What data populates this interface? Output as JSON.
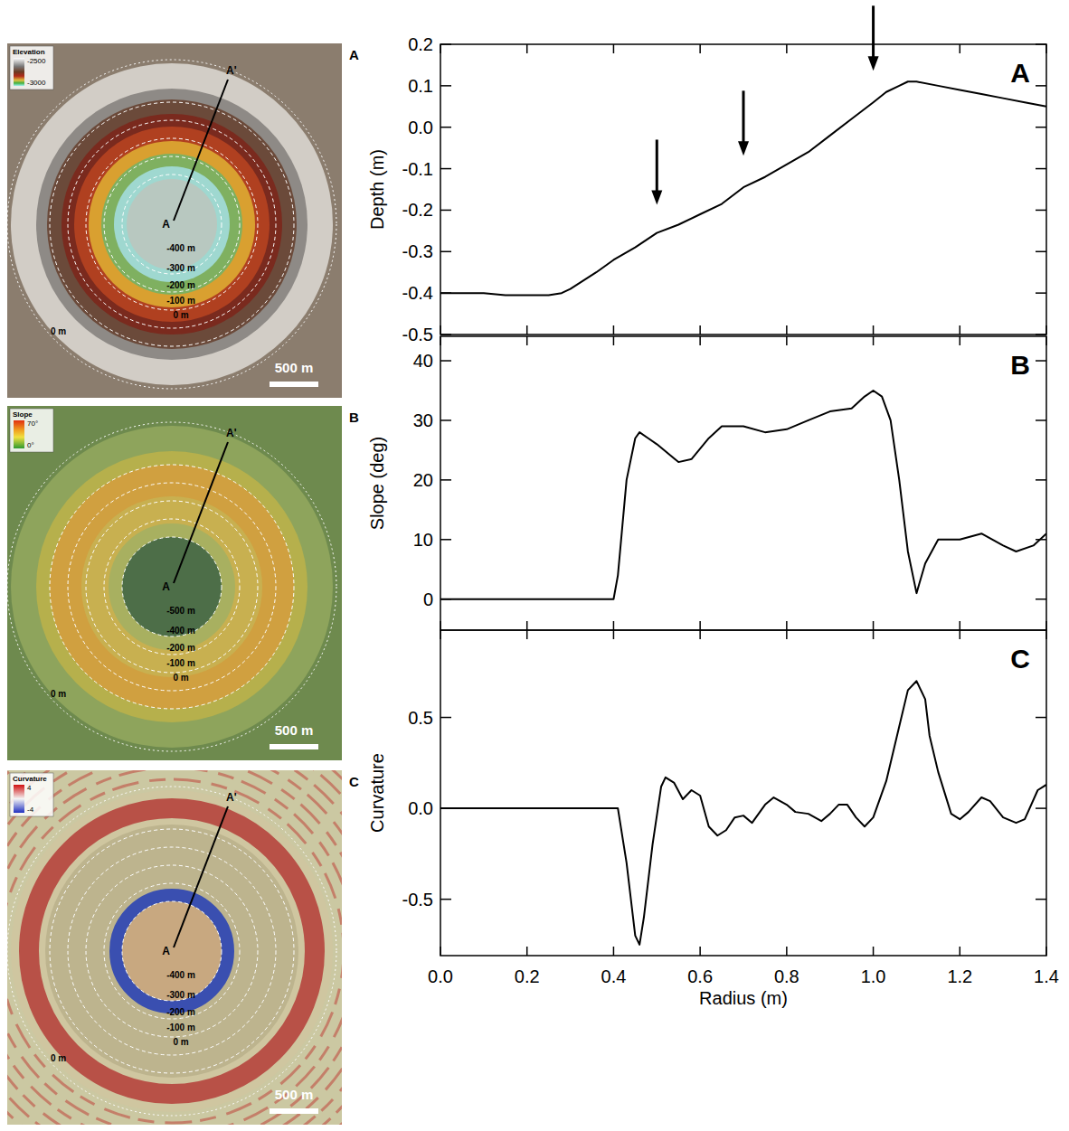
{
  "chart_data": [
    {
      "type": "line",
      "panel_letter": "A",
      "y_label": "Depth (m)",
      "color": "#000000",
      "tick_labels": "y",
      "xlim": [
        0,
        1.4
      ],
      "xticks": [
        {
          "value": 0,
          "label": "0.0"
        },
        0.2,
        0.4,
        0.6,
        0.8,
        {
          "value": 1,
          "label": "1.0"
        },
        1.2,
        1.4
      ],
      "ylim": [
        -0.5,
        0.2
      ],
      "yticks": [
        -0.5,
        -0.4,
        -0.3,
        -0.2,
        -0.1,
        {
          "value": 0,
          "label": "0.0"
        },
        0.1,
        0.2
      ],
      "x": [
        0,
        0.05,
        0.1,
        0.15,
        0.2,
        0.25,
        0.28,
        0.3,
        0.33,
        0.36,
        0.4,
        0.45,
        0.5,
        0.55,
        0.6,
        0.65,
        0.7,
        0.75,
        0.8,
        0.85,
        0.9,
        0.95,
        1.0,
        1.03,
        1.06,
        1.08,
        1.1,
        1.15,
        1.2,
        1.25,
        1.3,
        1.35,
        1.4
      ],
      "values": [
        -0.4,
        -0.4,
        -0.4,
        -0.405,
        -0.405,
        -0.405,
        -0.4,
        -0.39,
        -0.37,
        -0.35,
        -0.32,
        -0.29,
        -0.255,
        -0.235,
        -0.21,
        -0.185,
        -0.145,
        -0.12,
        -0.09,
        -0.06,
        -0.02,
        0.02,
        0.06,
        0.085,
        0.1,
        0.11,
        0.11,
        0.1,
        0.09,
        0.08,
        0.07,
        0.06,
        0.05
      ],
      "arrows": [
        {
          "x": 0.5,
          "y": -0.187
        },
        {
          "x": 0.7,
          "y": -0.069
        },
        {
          "x": 1.0,
          "y": 0.136
        }
      ]
    },
    {
      "type": "line",
      "panel_letter": "B",
      "y_label": "Slope (deg)",
      "color": "#000000",
      "tick_labels": "y",
      "xlim": [
        0,
        1.4
      ],
      "xticks": [
        {
          "value": 0,
          "label": "0.0"
        },
        0.2,
        0.4,
        0.6,
        0.8,
        {
          "value": 1,
          "label": "1.0"
        },
        1.2,
        1.4
      ],
      "ylim": [
        -5.2,
        44.1
      ],
      "yticks": [
        0,
        10,
        20,
        30,
        40
      ],
      "x": [
        0,
        0.2,
        0.4,
        0.41,
        0.42,
        0.43,
        0.45,
        0.46,
        0.48,
        0.5,
        0.55,
        0.58,
        0.62,
        0.65,
        0.7,
        0.75,
        0.8,
        0.85,
        0.9,
        0.95,
        0.98,
        1.0,
        1.02,
        1.04,
        1.06,
        1.08,
        1.1,
        1.12,
        1.15,
        1.2,
        1.25,
        1.3,
        1.33,
        1.37,
        1.4
      ],
      "values": [
        0,
        0,
        0,
        4,
        12,
        20,
        27,
        28,
        27,
        26,
        23,
        23.5,
        27,
        29,
        29,
        28,
        28.5,
        30,
        31.5,
        32,
        34,
        35,
        34,
        30,
        20,
        8,
        1,
        6,
        10,
        10,
        11,
        9,
        8,
        9,
        11
      ]
    },
    {
      "type": "line",
      "panel_letter": "C",
      "y_label": "Curvature",
      "x_label": "Radius (m)",
      "color": "#000000",
      "xlim": [
        0,
        1.4
      ],
      "xticks": [
        {
          "value": 0,
          "label": "0.0"
        },
        0.2,
        0.4,
        0.6,
        0.8,
        {
          "value": 1,
          "label": "1.0"
        },
        1.2,
        1.4
      ],
      "ylim": [
        -0.81,
        0.98
      ],
      "yticks": [
        -0.5,
        {
          "value": 0,
          "label": "0.0"
        },
        0.5
      ],
      "x": [
        0,
        0.2,
        0.41,
        0.43,
        0.45,
        0.46,
        0.47,
        0.49,
        0.51,
        0.52,
        0.54,
        0.56,
        0.58,
        0.6,
        0.62,
        0.64,
        0.66,
        0.68,
        0.7,
        0.72,
        0.75,
        0.77,
        0.8,
        0.82,
        0.85,
        0.88,
        0.9,
        0.92,
        0.94,
        0.96,
        0.98,
        1.0,
        1.03,
        1.06,
        1.08,
        1.1,
        1.12,
        1.13,
        1.15,
        1.18,
        1.2,
        1.22,
        1.25,
        1.27,
        1.3,
        1.33,
        1.35,
        1.38,
        1.4
      ],
      "values": [
        0,
        0,
        0,
        -0.3,
        -0.7,
        -0.75,
        -0.6,
        -0.2,
        0.12,
        0.17,
        0.14,
        0.05,
        0.1,
        0.07,
        -0.1,
        -0.15,
        -0.12,
        -0.05,
        -0.04,
        -0.08,
        0.02,
        0.06,
        0.02,
        -0.02,
        -0.03,
        -0.07,
        -0.03,
        0.02,
        0.02,
        -0.05,
        -0.1,
        -0.05,
        0.15,
        0.45,
        0.65,
        0.7,
        0.6,
        0.4,
        0.2,
        -0.03,
        -0.06,
        -0.02,
        0.06,
        0.04,
        -0.05,
        -0.08,
        -0.06,
        0.1,
        0.13
      ]
    }
  ],
  "map_panels": [
    {
      "panel_letter": "A",
      "legend_title": "Elevation",
      "legend_max": -2500,
      "legend_min": -3000,
      "profile_start": "A",
      "profile_end": "A'",
      "contour_labels": [
        "-400 m",
        "-300 m",
        "-200 m",
        "-100 m",
        "0 m"
      ],
      "outer_label": "0 m",
      "scale_bar": "500 m"
    },
    {
      "panel_letter": "B",
      "legend_title": "Slope",
      "legend_max": "70°",
      "legend_min": "0°",
      "profile_start": "A",
      "profile_end": "A'",
      "contour_labels": [
        "-500 m",
        "-400 m",
        "-200 m",
        "-100 m",
        "0 m"
      ],
      "outer_label": "0 m",
      "scale_bar": "500 m"
    },
    {
      "panel_letter": "C",
      "legend_title": "Curvature",
      "legend_max": 4,
      "legend_min": -4,
      "profile_start": "A",
      "profile_end": "A'",
      "contour_labels": [
        "-400 m",
        "-300 m",
        "-200 m",
        "-100 m",
        "0 m"
      ],
      "outer_label": "0 m",
      "scale_bar": "500 m"
    }
  ]
}
